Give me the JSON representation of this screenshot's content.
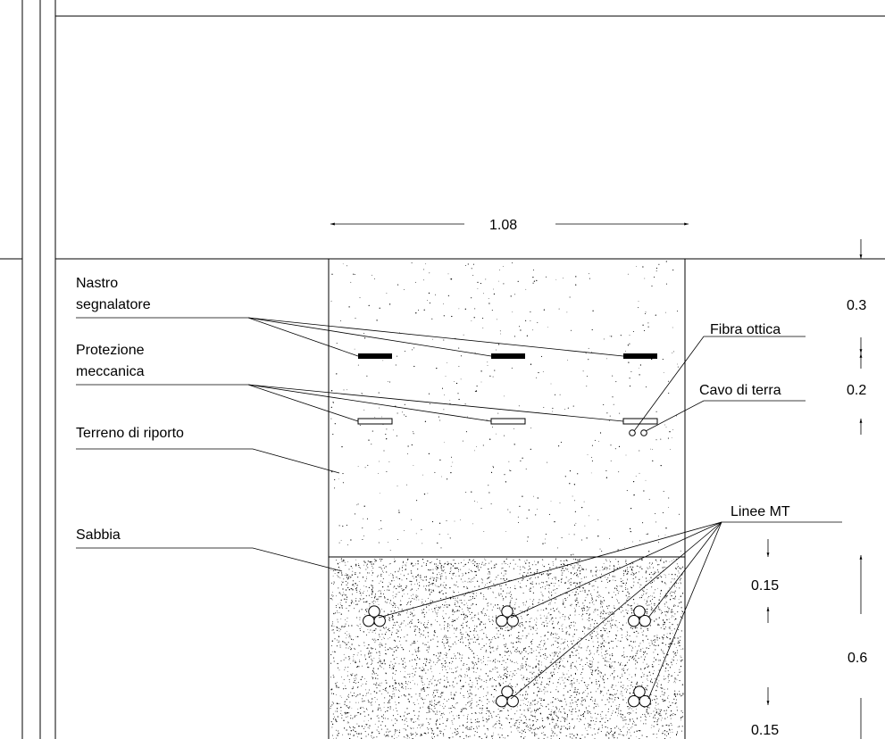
{
  "labels": {
    "nastro_line1": "Nastro",
    "nastro_line2": "segnalatore",
    "protezione_line1": "Protezione",
    "protezione_line2": "meccanica",
    "terreno": "Terreno di riporto",
    "sabbia": "Sabbia",
    "fibra": "Fibra ottica",
    "cavo": "Cavo di terra",
    "linee": "Linee MT"
  },
  "dimensions": {
    "width": "1.08",
    "d_top": "0.3",
    "d_mid": "0.2",
    "d_sand_total": "0.6",
    "d_sand_upper": "0.15",
    "d_sand_lower": "0.15"
  }
}
